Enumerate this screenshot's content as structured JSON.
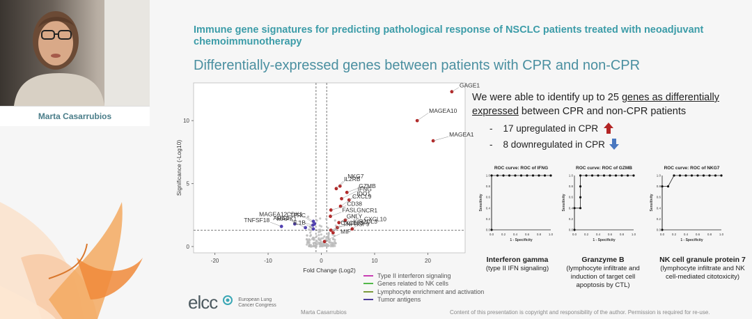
{
  "speaker": {
    "name": "Marta Casarrubios"
  },
  "slide": {
    "title": "Immune gene signatures for predicting pathological response of NSCLC patients treated with neoadjuvant chemoimmunotherapy",
    "subtitle": "Differentially-expressed genes between patients with CPR and non-CPR",
    "description_pre": "We were able to identify up to 25 ",
    "description_underlined": "genes as differentially expressed",
    "description_post": " between CPR and non-CPR patients",
    "bullets": [
      {
        "text": "17 upregulated in CPR",
        "arrow": "up",
        "color": "#b32525"
      },
      {
        "text": "8 downregulated in CPR",
        "arrow": "down",
        "color": "#4a78c0"
      }
    ],
    "legend": [
      {
        "label": "Type II interferon signaling",
        "color": "#c83eb3"
      },
      {
        "label": "Genes related to NK cells",
        "color": "#52b84a"
      },
      {
        "label": "Lymphocyte enrichment and activation",
        "color": "#7a9a3a"
      },
      {
        "label": "Tumor antigens",
        "color": "#4d3c9a"
      }
    ],
    "footer_author": "Marta Casarrubios",
    "footer_copyright": "Content of this presentation is copyright and responsibility of the author. Permission is required for re-use.",
    "logo": {
      "name": "elcc",
      "sub1": "European Lung",
      "sub2": "Cancer Congress"
    }
  },
  "chart_data": [
    {
      "type": "scatter",
      "title": "",
      "xlabel": "Fold Change (Log2)",
      "ylabel": "Significance (-Log10)",
      "xlim": [
        -24,
        27
      ],
      "ylim": [
        -0.5,
        13
      ],
      "xticks": [
        -20,
        -10,
        0,
        10,
        20
      ],
      "yticks": [
        0,
        5,
        10
      ],
      "threshold_x": [
        -1,
        1
      ],
      "threshold_y": 1.3,
      "labeled_points": [
        {
          "gene": "GAGE1",
          "x": 24.5,
          "y": 12.3,
          "color": "#b32525"
        },
        {
          "gene": "MAGEA10",
          "x": 18,
          "y": 10,
          "color": "#b32525"
        },
        {
          "gene": "MAGEA1",
          "x": 21,
          "y": 8.4,
          "color": "#b32525"
        },
        {
          "gene": "NKG7",
          "x": 3.5,
          "y": 4.8,
          "color": "#b32525"
        },
        {
          "gene": "GZMB",
          "x": 4.8,
          "y": 4.3,
          "color": "#b32525"
        },
        {
          "gene": "IFNG",
          "x": 3.8,
          "y": 3.8,
          "color": "#b32525"
        },
        {
          "gene": "IDO1",
          "x": 5.2,
          "y": 3.7,
          "color": "#b32525"
        },
        {
          "gene": "CXCL9",
          "x": 3.6,
          "y": 3.2,
          "color": "#b32525"
        },
        {
          "gene": "CD38",
          "x": 1.8,
          "y": 2.9,
          "color": "#b32525"
        },
        {
          "gene": "IL2RB",
          "x": 2.8,
          "y": 4.6,
          "color": "#b32525"
        },
        {
          "gene": "FASLG",
          "x": 1.7,
          "y": 2.4,
          "color": "#b32525"
        },
        {
          "gene": "NCR1",
          "x": 4.5,
          "y": 2.1,
          "color": "#b32525"
        },
        {
          "gene": "GNLY",
          "x": 3.3,
          "y": 1.9,
          "color": "#b32525"
        },
        {
          "gene": "CXCL10",
          "x": 5.8,
          "y": 1.4,
          "color": "#b32525"
        },
        {
          "gene": "KIR2DL3",
          "x": 3.0,
          "y": 1.5,
          "color": "#b32525"
        },
        {
          "gene": "CXCL13",
          "x": 2.2,
          "y": 1.1,
          "color": "#b32525"
        },
        {
          "gene": "TNFRSF9",
          "x": 1.8,
          "y": 1.3,
          "color": "#b32525"
        },
        {
          "gene": "MIF",
          "x": 0.6,
          "y": 0.4,
          "color": "#b32525"
        },
        {
          "gene": "TFRC",
          "x": -1.5,
          "y": 2.0,
          "color": "#4d3cb3"
        },
        {
          "gene": "CDK1",
          "x": -1.3,
          "y": 1.8,
          "color": "#4d3cb3"
        },
        {
          "gene": "MAPK1",
          "x": -1.6,
          "y": 1.7,
          "color": "#4d3cb3"
        },
        {
          "gene": "MAGEA12",
          "x": -5.0,
          "y": 1.8,
          "color": "#4d3cb3"
        },
        {
          "gene": "TNFSF18",
          "x": -7.5,
          "y": 1.6,
          "color": "#4d3cb3"
        },
        {
          "gene": "ARG1",
          "x": -3.0,
          "y": 1.5,
          "color": "#4d3cb3"
        },
        {
          "gene": "IL1B",
          "x": -1.5,
          "y": 1.4,
          "color": "#4d3cb3"
        }
      ]
    },
    {
      "type": "line",
      "title": "ROC curve: ROC of IFNG",
      "xlabel": "1 - Specificity",
      "ylabel": "Sensitivity",
      "xlim": [
        0,
        1
      ],
      "ylim": [
        0,
        1
      ],
      "xticks": [
        "0.0",
        "0.2",
        "0.4",
        "0.6",
        "0.8",
        "1.0"
      ],
      "yticks": [
        "0.0",
        "0.2",
        "0.4",
        "0.6",
        "0.8",
        "1.0"
      ],
      "points": [
        [
          0,
          0
        ],
        [
          0,
          1
        ],
        [
          0.1,
          1
        ],
        [
          0.2,
          1
        ],
        [
          0.3,
          1
        ],
        [
          0.4,
          1
        ],
        [
          0.5,
          1
        ],
        [
          0.6,
          1
        ],
        [
          0.7,
          1
        ],
        [
          0.8,
          1
        ],
        [
          0.9,
          1
        ],
        [
          1,
          1
        ]
      ],
      "caption_bold": "Interferon gamma",
      "caption": "(type II IFN signaling)"
    },
    {
      "type": "line",
      "title": "ROC curve: ROC of GZMB",
      "xlabel": "1 - Specificity",
      "ylabel": "Sensitivity",
      "xlim": [
        0,
        1
      ],
      "ylim": [
        0,
        1
      ],
      "xticks": [
        "0.0",
        "0.2",
        "0.4",
        "0.6",
        "0.8",
        "1.0"
      ],
      "yticks": [
        "0.0",
        "0.2",
        "0.4",
        "0.6",
        "0.8",
        "1.0"
      ],
      "points": [
        [
          0,
          0
        ],
        [
          0,
          0.4
        ],
        [
          0.1,
          0.4
        ],
        [
          0.1,
          0.6
        ],
        [
          0.1,
          0.8
        ],
        [
          0.1,
          1
        ],
        [
          0.2,
          1
        ],
        [
          0.3,
          1
        ],
        [
          0.4,
          1
        ],
        [
          0.5,
          1
        ],
        [
          0.6,
          1
        ],
        [
          0.7,
          1
        ],
        [
          0.8,
          1
        ],
        [
          0.9,
          1
        ],
        [
          1,
          1
        ]
      ],
      "caption_bold": "Granzyme B",
      "caption": "(lymphocyte infiltrate and induction of target cell apoptosis by CTL)"
    },
    {
      "type": "line",
      "title": "ROC curve: ROC of NKG7",
      "xlabel": "1 - Specificity",
      "ylabel": "Sensitivity",
      "xlim": [
        0,
        1
      ],
      "ylim": [
        0,
        1
      ],
      "xticks": [
        "0.0",
        "0.2",
        "0.4",
        "0.6",
        "0.8",
        "1.0"
      ],
      "yticks": [
        "0.0",
        "0.2",
        "0.4",
        "0.6",
        "0.8",
        "1.0"
      ],
      "points": [
        [
          0,
          0
        ],
        [
          0,
          0.8
        ],
        [
          0.1,
          0.8
        ],
        [
          0.2,
          1
        ],
        [
          0.3,
          1
        ],
        [
          0.4,
          1
        ],
        [
          0.5,
          1
        ],
        [
          0.6,
          1
        ],
        [
          0.7,
          1
        ],
        [
          0.8,
          1
        ],
        [
          0.9,
          1
        ],
        [
          1,
          1
        ]
      ],
      "caption_bold": "NK cell granule protein 7",
      "caption": "(lymphocyte infiltrate and NK cell-mediated citotoxicity)"
    }
  ]
}
